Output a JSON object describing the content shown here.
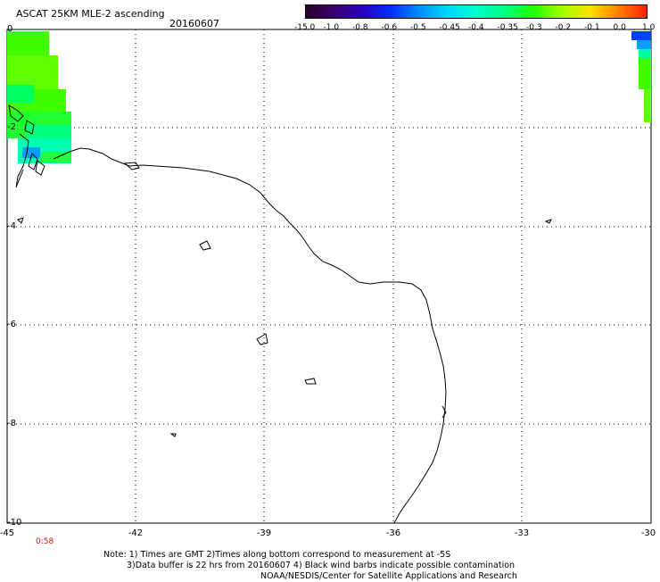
{
  "header": {
    "title": "ASCAT 25KM MLE-2 ascending",
    "date": "20160607"
  },
  "colorbar": {
    "labels": [
      "-15.0",
      "-1.0",
      "-0.8",
      "-0.6",
      "-0.5",
      "-0.45",
      "-0.4",
      "-0.35",
      "-0.3",
      "-0.2",
      "-0.1",
      "0.0",
      "1.0"
    ],
    "colors": [
      "#2a002a",
      "#3a0070",
      "#2a00c0",
      "#0030ff",
      "#0090ff",
      "#00d8ff",
      "#00ffd0",
      "#00ff80",
      "#20ff00",
      "#a0ff00",
      "#ffe000",
      "#ff8000",
      "#ff2000"
    ]
  },
  "map": {
    "x_ticks": [
      "-45",
      "-42",
      "-39",
      "-36",
      "-33",
      "-30"
    ],
    "y_ticks": [
      "0",
      "-2",
      "-4",
      "-6",
      "-8",
      "-10"
    ],
    "time_label": "0:58",
    "grid": "dotted",
    "swath_colors": [
      "#00ff40",
      "#40ff00",
      "#80ff00",
      "#00ffb0",
      "#00a0ff",
      "#0040ff"
    ]
  },
  "notes": {
    "line1": "Note: 1) Times are GMT 2)Times along bottom correspond to measurement at -5S",
    "line2": "3)Data buffer is 22 hrs from 20160607 4) Black wind barbs indicate possible contamination",
    "line3": "NOAA/NESDIS/Center for Satellite Applications and Research"
  }
}
